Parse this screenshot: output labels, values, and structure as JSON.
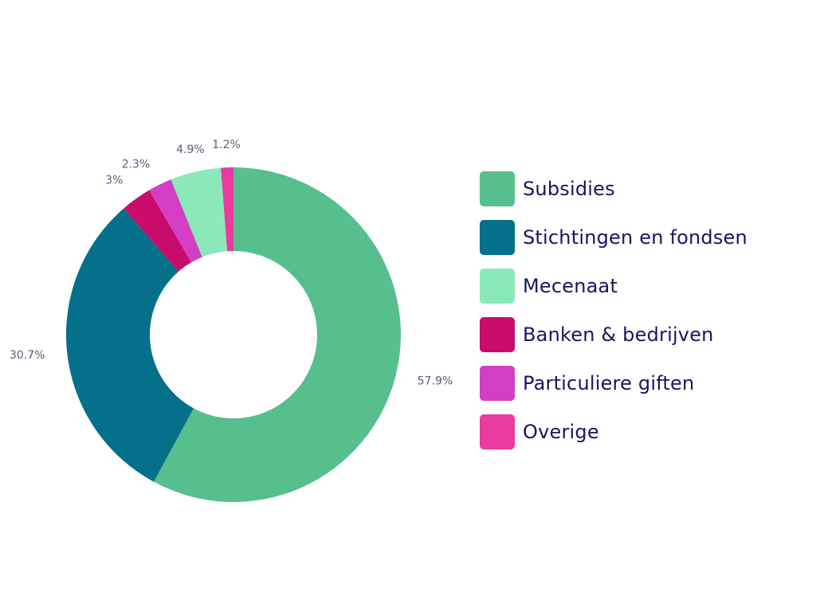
{
  "chart_data": {
    "type": "pie",
    "variant": "donut",
    "title": "",
    "categories": [
      "Subsidies",
      "Stichtingen en fondsen",
      "Banken & bedrijven",
      "Particuliere giften",
      "Mecenaat",
      "Overige"
    ],
    "values": [
      57.9,
      30.7,
      3,
      2.3,
      4.9,
      1.2
    ],
    "value_labels": [
      "57.9%",
      "30.7%",
      "3%",
      "2.3%",
      "4.9%",
      "1.2%"
    ],
    "colors": [
      "#57bf8e",
      "#04708a",
      "#c80c6b",
      "#d43ec5",
      "#8ae8bb",
      "#ea3a9e"
    ],
    "legend_position": "right",
    "legend": [
      {
        "label": "Subsidies",
        "color": "#57bf8e"
      },
      {
        "label": "Stichtingen en fondsen",
        "color": "#04708a"
      },
      {
        "label": "Mecenaat",
        "color": "#8ae8bb"
      },
      {
        "label": "Banken & bedrijven",
        "color": "#c80c6b"
      },
      {
        "label": "Particuliere giften",
        "color": "#d43ec5"
      },
      {
        "label": "Overige",
        "color": "#ea3a9e"
      }
    ]
  }
}
